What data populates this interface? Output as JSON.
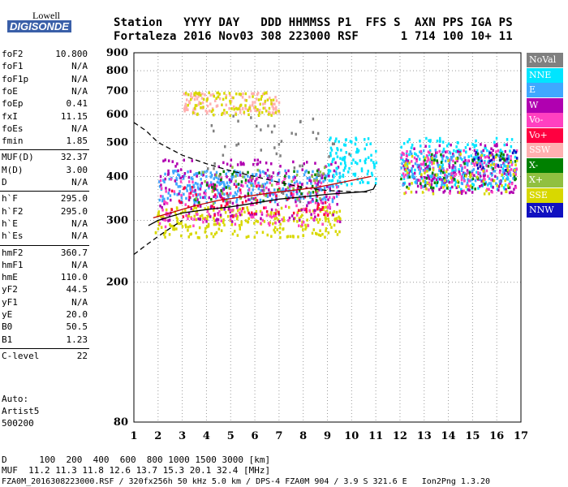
{
  "logo": {
    "lowell": "Lowell",
    "digisonde": "DIGISONDE"
  },
  "header": {
    "line1": "Station   YYYY DAY   DDD HHMMSS P1  FFS S  AXN PPS IGA PS",
    "line2": "Fortaleza 2016 Nov03 308 223000 RSF      1 714 100 10+ 11"
  },
  "params": [
    {
      "k": "foF2",
      "v": "10.800"
    },
    {
      "k": "foF1",
      "v": "N/A"
    },
    {
      "k": "foF1p",
      "v": "N/A"
    },
    {
      "k": "foE",
      "v": "N/A"
    },
    {
      "k": "foEp",
      "v": "0.41"
    },
    {
      "k": "fxI",
      "v": "11.15"
    },
    {
      "k": "foEs",
      "v": "N/A"
    },
    {
      "k": "fmin",
      "v": "1.85"
    },
    {
      "k": "MUF(D)",
      "v": "32.37"
    },
    {
      "k": "M(D)",
      "v": "3.00"
    },
    {
      "k": "D",
      "v": "N/A"
    },
    {
      "k": "h`F",
      "v": "295.0"
    },
    {
      "k": "h`F2",
      "v": "295.0"
    },
    {
      "k": "h`E",
      "v": "N/A"
    },
    {
      "k": "h`Es",
      "v": "N/A"
    },
    {
      "k": "hmF2",
      "v": "360.7"
    },
    {
      "k": "hmF1",
      "v": "N/A"
    },
    {
      "k": "hmE",
      "v": "110.0"
    },
    {
      "k": "yF2",
      "v": "44.5"
    },
    {
      "k": "yF1",
      "v": "N/A"
    },
    {
      "k": "yE",
      "v": "20.0"
    },
    {
      "k": "B0",
      "v": "50.5"
    },
    {
      "k": "B1",
      "v": "1.23"
    },
    {
      "k": "C-level",
      "v": "22"
    }
  ],
  "auto": {
    "l1": "Auto:",
    "l2": "Artist5",
    "l3": "500200"
  },
  "footer": {
    "d_line": "D      100  200  400  600  800 1000 1500 3000 [km]",
    "muf_line": "MUF  11.2 11.3 11.8 12.6 13.7 15.3 20.1 32.4 [MHz]",
    "file_line": "FZA0M_2016308223000.RSF / 320fx256h 50 kHz 5.0 km / DPS-4 FZA0M 904 / 3.9 S 321.6 E   Ion2Png 1.3.20"
  },
  "legend": [
    {
      "label": "NoVal",
      "bg": "#808080",
      "fg": "#ffffff"
    },
    {
      "label": "NNE",
      "bg": "#00e5ff",
      "fg": "#ffffff"
    },
    {
      "label": "E",
      "bg": "#3fa8ff",
      "fg": "#ffffff"
    },
    {
      "label": "W",
      "bg": "#b000b0",
      "fg": "#ffffff"
    },
    {
      "label": "Vo-",
      "bg": "#ff40c0",
      "fg": "#ffffff"
    },
    {
      "label": "Vo+",
      "bg": "#ff0040",
      "fg": "#ffffff"
    },
    {
      "label": "SSW",
      "bg": "#ffb0b0",
      "fg": "#ffffff"
    },
    {
      "label": "X-",
      "bg": "#008000",
      "fg": "#ffffff"
    },
    {
      "label": "X+",
      "bg": "#90c040",
      "fg": "#ffffff"
    },
    {
      "label": "SSE",
      "bg": "#d8d800",
      "fg": "#ffffff"
    },
    {
      "label": "NNW",
      "bg": "#1010c0",
      "fg": "#ffffff"
    }
  ],
  "chart_data": {
    "type": "scatter",
    "xlim": [
      1,
      17
    ],
    "ylim": [
      80,
      900
    ],
    "y_scale": "log",
    "x_ticks": [
      "1",
      "2",
      "3",
      "4",
      "5",
      "6",
      "7",
      "8",
      "9",
      "10",
      "11",
      "12",
      "13",
      "14",
      "15",
      "16",
      "17"
    ],
    "y_ticks": [
      "80",
      "200",
      "300",
      "400",
      "500",
      "600",
      "700",
      "800",
      "900"
    ],
    "grid": "dotted",
    "lines": [
      {
        "name": "o-trace",
        "color": "#000000",
        "style": "solid",
        "x": [
          1.6,
          2.0,
          3.0,
          4.0,
          5.0,
          6.0,
          7.0,
          8.0,
          9.0,
          10.0,
          10.5,
          10.9,
          11.0
        ],
        "y": [
          290,
          300,
          315,
          322,
          328,
          336,
          345,
          350,
          356,
          360,
          362,
          368,
          380
        ]
      },
      {
        "name": "profile",
        "color": "#000000",
        "style": "dashed",
        "x": [
          1.0,
          1.5,
          2.0,
          3.0,
          4.0,
          5.0,
          6.0,
          7.0,
          8.0,
          9.0,
          10.0,
          10.8
        ],
        "y": [
          570,
          540,
          500,
          460,
          435,
          415,
          400,
          385,
          372,
          365,
          362,
          361
        ]
      },
      {
        "name": "profile-lower",
        "color": "#000000",
        "style": "dashed",
        "x": [
          1.0,
          1.5,
          2.0,
          2.5,
          3.0
        ],
        "y": [
          240,
          255,
          270,
          285,
          300
        ]
      },
      {
        "name": "x-trace",
        "color": "#c00000",
        "style": "solid",
        "x": [
          1.8,
          2.5,
          3.5,
          4.5,
          5.5,
          6.5,
          7.5,
          8.5,
          9.2,
          10.0,
          10.8
        ],
        "y": [
          305,
          315,
          330,
          342,
          350,
          358,
          365,
          372,
          380,
          390,
          400
        ]
      }
    ],
    "clusters": [
      {
        "label": "E",
        "x": [
          2.0,
          9.5
        ],
        "y": [
          340,
          420
        ],
        "n": 300
      },
      {
        "label": "SSE",
        "x": [
          1.8,
          9.5
        ],
        "y": [
          270,
          330
        ],
        "n": 260
      },
      {
        "label": "W",
        "x": [
          2.0,
          9.5
        ],
        "y": [
          300,
          450
        ],
        "n": 220
      },
      {
        "label": "Vo-",
        "x": [
          2.0,
          9.5
        ],
        "y": [
          290,
          400
        ],
        "n": 140
      },
      {
        "label": "Vo+",
        "x": [
          2.5,
          9.0
        ],
        "y": [
          310,
          380
        ],
        "n": 70
      },
      {
        "label": "NNE",
        "x": [
          9.0,
          11.0
        ],
        "y": [
          380,
          520
        ],
        "n": 110
      },
      {
        "label": "X-",
        "x": [
          3.0,
          9.0
        ],
        "y": [
          340,
          420
        ],
        "n": 40
      },
      {
        "label": "X+",
        "x": [
          3.0,
          9.0
        ],
        "y": [
          330,
          430
        ],
        "n": 40
      },
      {
        "label": "SSW",
        "x": [
          3.0,
          7.0
        ],
        "y": [
          610,
          700
        ],
        "n": 120
      },
      {
        "label": "SSE",
        "x": [
          3.0,
          7.0
        ],
        "y": [
          600,
          700
        ],
        "n": 90
      },
      {
        "label": "NNE",
        "x": [
          12.0,
          16.8
        ],
        "y": [
          370,
          520
        ],
        "n": 220
      },
      {
        "label": "W",
        "x": [
          12.0,
          16.8
        ],
        "y": [
          360,
          500
        ],
        "n": 180
      },
      {
        "label": "E",
        "x": [
          12.0,
          16.8
        ],
        "y": [
          380,
          480
        ],
        "n": 150
      },
      {
        "label": "Vo-",
        "x": [
          12.0,
          16.8
        ],
        "y": [
          360,
          480
        ],
        "n": 110
      },
      {
        "label": "X-",
        "x": [
          12.0,
          16.8
        ],
        "y": [
          370,
          470
        ],
        "n": 60
      },
      {
        "label": "SSE",
        "x": [
          12.0,
          16.8
        ],
        "y": [
          360,
          470
        ],
        "n": 70
      },
      {
        "label": "NNW",
        "x": [
          15.0,
          16.8
        ],
        "y": [
          420,
          480
        ],
        "n": 20
      },
      {
        "label": "NoVal",
        "x": [
          4.0,
          10.0
        ],
        "y": [
          330,
          600
        ],
        "n": 50
      }
    ]
  }
}
